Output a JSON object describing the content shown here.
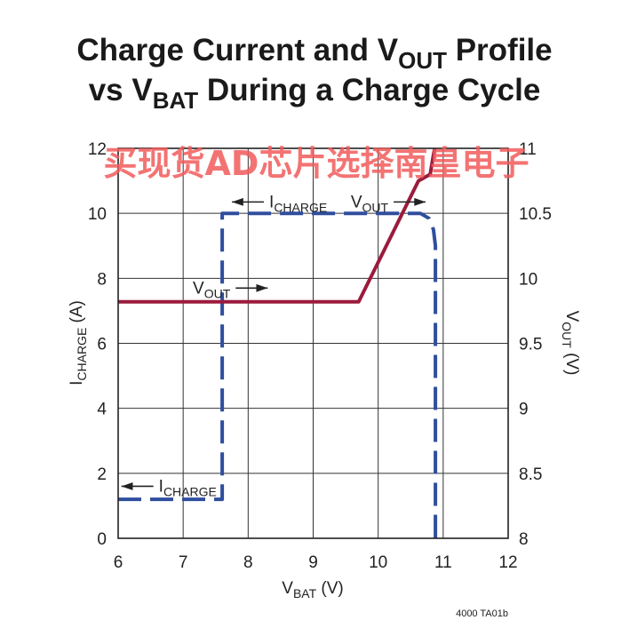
{
  "chart_data": {
    "type": "line",
    "title": {
      "line1_pre": "Charge Current and V",
      "line1_sub": "OUT",
      "line1_post": " Profile",
      "line2_pre": "vs V",
      "line2_sub": "BAT",
      "line2_post": " During a Charge Cycle"
    },
    "x_axis": {
      "label_main": "V",
      "label_sub": "BAT",
      "label_unit": " (V)",
      "range": [
        6,
        12
      ],
      "ticks": [
        6,
        7,
        8,
        9,
        10,
        11,
        12
      ]
    },
    "y_left": {
      "label_main": "I",
      "label_sub": "CHARGE",
      "label_unit": " (A)",
      "range": [
        0,
        12
      ],
      "ticks": [
        0,
        2,
        4,
        6,
        8,
        10,
        12
      ]
    },
    "y_right": {
      "label_main": "V",
      "label_sub": "OUT",
      "label_unit": " (V)",
      "range": [
        8,
        11
      ],
      "ticks": [
        "8",
        "8.5",
        "9",
        "9.5",
        "10",
        "10.5",
        "11"
      ]
    },
    "grid": true,
    "series": [
      {
        "key": "icharge",
        "axis": "left",
        "style": "dashed",
        "color": "#2f4e9e",
        "x": [
          6.0,
          7.6,
          7.6,
          10.65,
          10.78,
          10.85,
          10.88,
          10.88
        ],
        "y": [
          1.2,
          1.2,
          10.0,
          10.0,
          9.85,
          9.5,
          9.0,
          0.0
        ]
      },
      {
        "key": "vout",
        "axis": "right",
        "style": "solid",
        "color": "#9b1b3c",
        "x": [
          6.0,
          9.7,
          10.62,
          10.8,
          10.85,
          10.87
        ],
        "y": [
          9.82,
          9.82,
          10.75,
          10.8,
          10.95,
          11.0
        ]
      }
    ],
    "annotations": [
      {
        "main": "I",
        "sub": "CHARGE",
        "arrow": "left",
        "x": 7.75,
        "y": 10.35
      },
      {
        "main": "V",
        "sub": "OUT",
        "arrow": "right",
        "x": 10.73,
        "y": 10.35
      },
      {
        "main": "V",
        "sub": "OUT",
        "arrow": "right",
        "x": 8.3,
        "y": 7.7
      },
      {
        "main": "I",
        "sub": "CHARGE",
        "arrow": "left",
        "x": 6.05,
        "y": 1.6
      }
    ],
    "watermark": "买现货AD芯片选择南皇电子",
    "figure_code": "4000 TA01b"
  }
}
